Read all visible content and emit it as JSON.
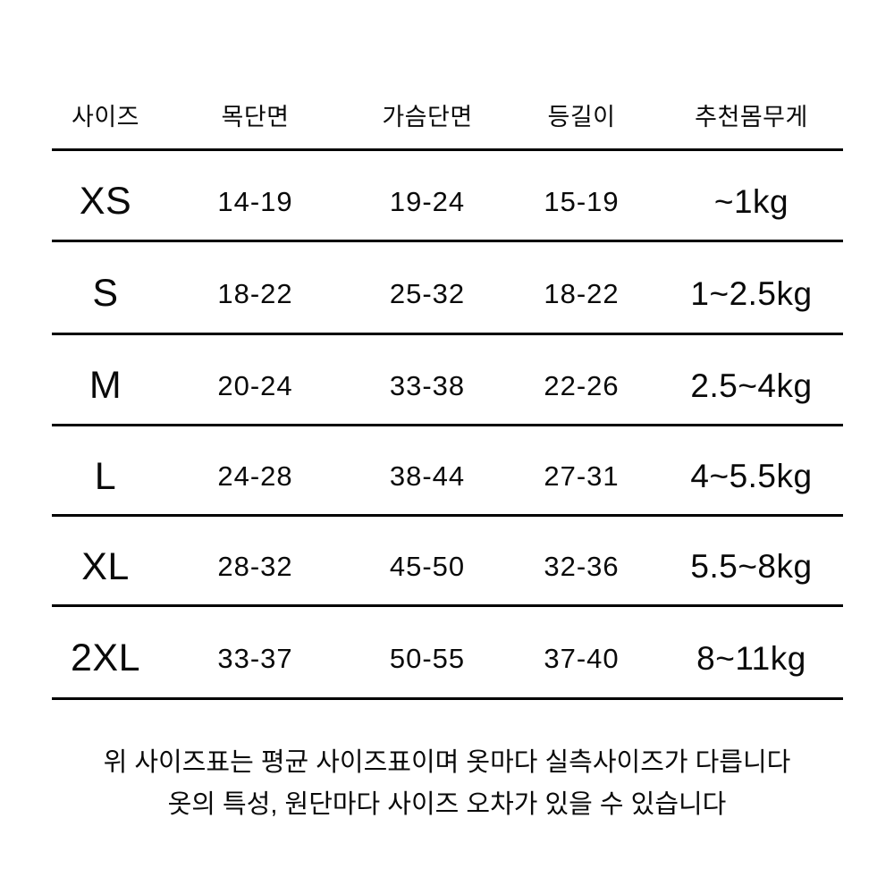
{
  "table": {
    "columns": [
      "사이즈",
      "목단면",
      "가슴단면",
      "등길이",
      "추천몸무게"
    ],
    "rows": [
      {
        "size": "XS",
        "neck": "14-19",
        "chest": "19-24",
        "back": "15-19",
        "weight": "~1kg"
      },
      {
        "size": "S",
        "neck": "18-22",
        "chest": "25-32",
        "back": "18-22",
        "weight": "1~2.5kg"
      },
      {
        "size": "M",
        "neck": "20-24",
        "chest": "33-38",
        "back": "22-26",
        "weight": "2.5~4kg"
      },
      {
        "size": "L",
        "neck": "24-28",
        "chest": "38-44",
        "back": "27-31",
        "weight": "4~5.5kg"
      },
      {
        "size": "XL",
        "neck": "28-32",
        "chest": "45-50",
        "back": "32-36",
        "weight": "5.5~8kg"
      },
      {
        "size": "2XL",
        "neck": "33-37",
        "chest": "50-55",
        "back": "37-40",
        "weight": "8~11kg"
      }
    ]
  },
  "footer": {
    "line1": "위 사이즈표는 평균 사이즈표이며 옷마다 실측사이즈가 다릅니다",
    "line2": "옷의 특성, 원단마다 사이즈 오차가 있을 수 있습니다"
  },
  "colors": {
    "background": "#ffffff",
    "text": "#0a0a0a",
    "rule": "#000000"
  }
}
